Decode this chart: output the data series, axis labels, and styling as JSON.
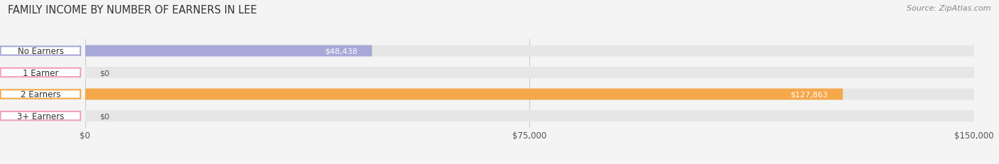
{
  "title": "FAMILY INCOME BY NUMBER OF EARNERS IN LEE",
  "source": "Source: ZipAtlas.com",
  "categories": [
    "No Earners",
    "1 Earner",
    "2 Earners",
    "3+ Earners"
  ],
  "values": [
    48438,
    0,
    127863,
    0
  ],
  "bar_colors": [
    "#a8a8d8",
    "#f0a0b8",
    "#f5a84a",
    "#f0a0b8"
  ],
  "label_values": [
    "$48,438",
    "$0",
    "$127,863",
    "$0"
  ],
  "xlim": [
    0,
    150000
  ],
  "xticks": [
    0,
    75000,
    150000
  ],
  "xticklabels": [
    "$0",
    "$75,000",
    "$150,000"
  ],
  "background_color": "#f4f4f4",
  "bar_background_color": "#e6e6e6",
  "title_fontsize": 10.5,
  "bar_height": 0.52,
  "pill_edge_colors": [
    "#a8a8d8",
    "#f0a0b8",
    "#f5a84a",
    "#f0a0b8"
  ]
}
